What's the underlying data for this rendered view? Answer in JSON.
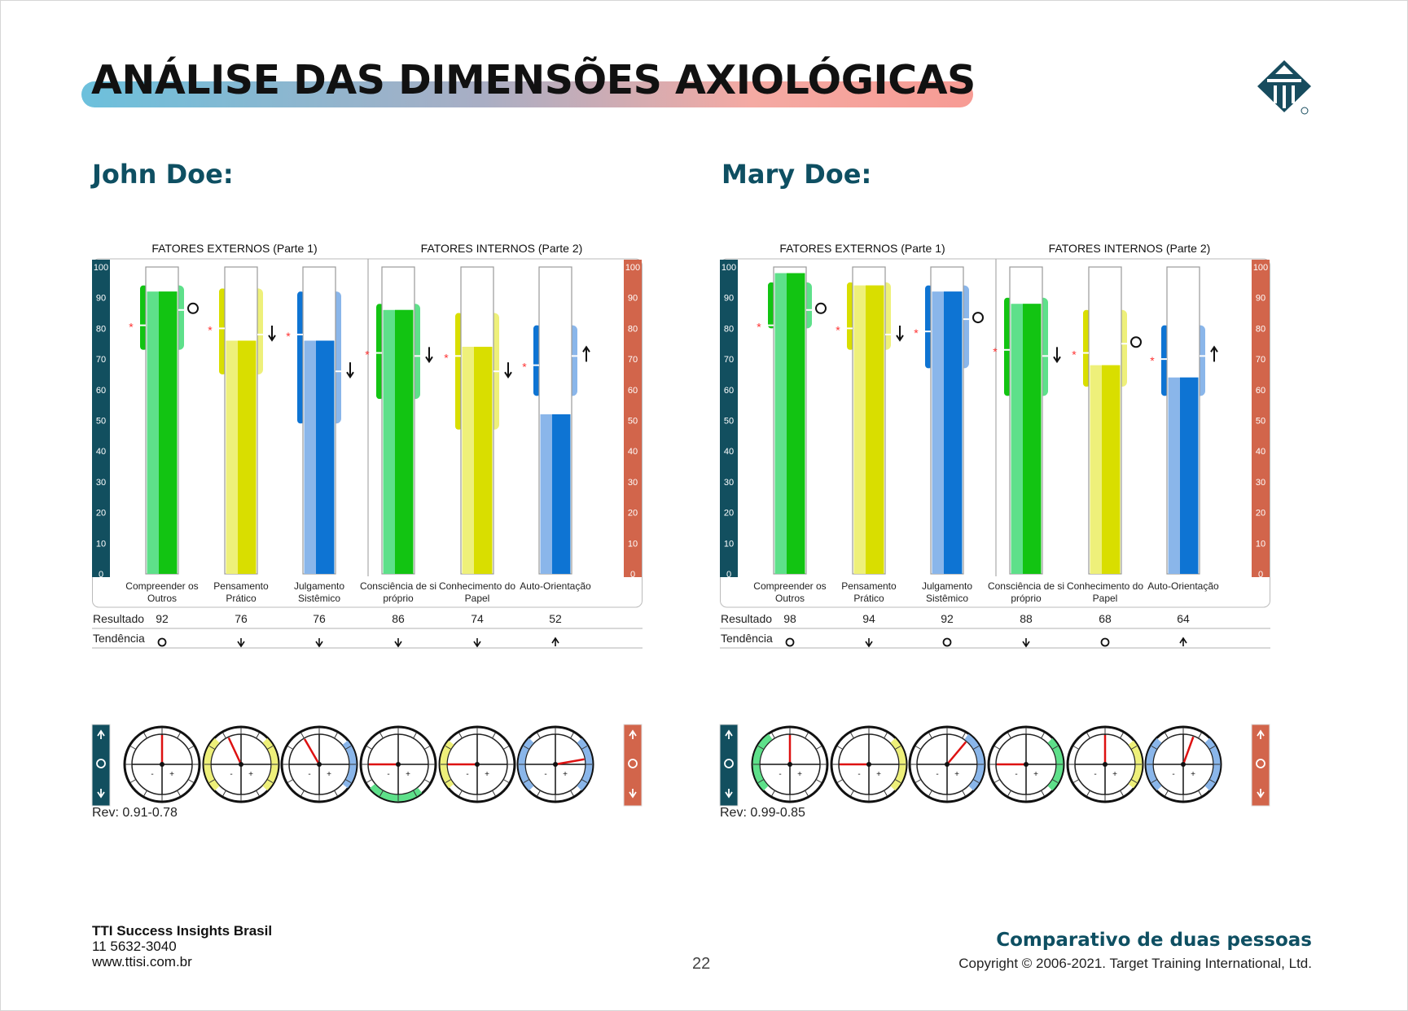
{
  "page": {
    "title": "ANÁLISE DAS DIMENSÕES AXIOLÓGICAS",
    "page_number": "22",
    "report_title": "Comparativo de duas pessoas",
    "copyright": "Copyright © 2006-2021. Target Training International, Ltd.",
    "company": "TTI Success Insights Brasil",
    "phone": "11 5632-3040",
    "website": "www.ttisi.com.br",
    "logo_icon": "tti-diamond-logo-icon"
  },
  "labels": {
    "external": "FATORES EXTERNOS (Parte 1)",
    "internal": "FATORES INTERNOS (Parte 2)",
    "result_row": "Resultado",
    "trend_row": "Tendência"
  },
  "scale_ticks": [
    0,
    10,
    20,
    30,
    40,
    50,
    60,
    70,
    80,
    90,
    100
  ],
  "colors": {
    "left_axis": "#124f5f",
    "right_axis": "#d2654b",
    "green_dark": "#12c412",
    "green_light": "#5ee08a",
    "yellow_dark": "#d9de00",
    "yellow_light": "#eef07a",
    "blue_dark": "#0e74d3",
    "blue_light": "#8ab6ea",
    "needle": "#dd1111",
    "marker": "#ff3333"
  },
  "people": [
    {
      "name": "John Doe:",
      "rev": "Rev: 0.91-0.78",
      "chart_data": {
        "type": "bar",
        "ylim": [
          0,
          100
        ],
        "series": [
          {
            "name": "Compreender os Outros",
            "value": 92,
            "trend": "O",
            "marker": 81,
            "band": [
              73,
              94
            ],
            "tick": 86,
            "color": "green"
          },
          {
            "name": "Pensamento Prático",
            "value": 76,
            "trend": "↓",
            "marker": 80,
            "band": [
              65,
              93
            ],
            "tick": 78,
            "color": "yellow"
          },
          {
            "name": "Julgamento Sistêmico",
            "value": 76,
            "trend": "↓",
            "marker": 78,
            "band": [
              49,
              92
            ],
            "tick": 66,
            "color": "blue"
          },
          {
            "name": "Consciência de si próprio",
            "value": 86,
            "trend": "↓",
            "marker": 72,
            "band": [
              57,
              88
            ],
            "tick": 71,
            "color": "green"
          },
          {
            "name": "Conhecimento do Papel",
            "value": 74,
            "trend": "↓",
            "marker": 71,
            "band": [
              47,
              85
            ],
            "tick": 66,
            "color": "yellow"
          },
          {
            "name": "Auto-Orientação",
            "value": 52,
            "trend": "↑",
            "marker": 68,
            "band": [
              58,
              81
            ],
            "tick": 71,
            "color": "blue"
          }
        ]
      },
      "dials": [
        {
          "angle": 0,
          "band": "none"
        },
        {
          "angle": -25,
          "band": "sides"
        },
        {
          "angle": -30,
          "band": "right"
        },
        {
          "angle": -90,
          "band": "bottom-left"
        },
        {
          "angle": -90,
          "band": "left"
        },
        {
          "angle": 80,
          "band": "sides"
        }
      ]
    },
    {
      "name": "Mary Doe:",
      "rev": "Rev: 0.99-0.85",
      "chart_data": {
        "type": "bar",
        "ylim": [
          0,
          100
        ],
        "series": [
          {
            "name": "Compreender os Outros",
            "value": 98,
            "trend": "O",
            "marker": 81,
            "band": [
              80,
              95
            ],
            "tick": 86,
            "color": "green"
          },
          {
            "name": "Pensamento Prático",
            "value": 94,
            "trend": "↓",
            "marker": 80,
            "band": [
              73,
              95
            ],
            "tick": 78,
            "color": "yellow"
          },
          {
            "name": "Julgamento Sistêmico",
            "value": 92,
            "trend": "O",
            "marker": 79,
            "band": [
              67,
              94
            ],
            "tick": 83,
            "color": "blue"
          },
          {
            "name": "Consciência de si próprio",
            "value": 88,
            "trend": "↓",
            "marker": 73,
            "band": [
              58,
              90
            ],
            "tick": 71,
            "color": "green"
          },
          {
            "name": "Conhecimento do Papel",
            "value": 68,
            "trend": "O",
            "marker": 72,
            "band": [
              61,
              86
            ],
            "tick": 75,
            "color": "yellow"
          },
          {
            "name": "Auto-Orientação",
            "value": 64,
            "trend": "↑",
            "marker": 70,
            "band": [
              58,
              81
            ],
            "tick": 71,
            "color": "blue"
          }
        ]
      },
      "dials": [
        {
          "angle": 0,
          "band": "top-left"
        },
        {
          "angle": -90,
          "band": "bottom-right"
        },
        {
          "angle": 40,
          "band": "top-right"
        },
        {
          "angle": -90,
          "band": "bottom-right"
        },
        {
          "angle": 0,
          "band": "right"
        },
        {
          "angle": 20,
          "band": "sides"
        }
      ]
    }
  ]
}
